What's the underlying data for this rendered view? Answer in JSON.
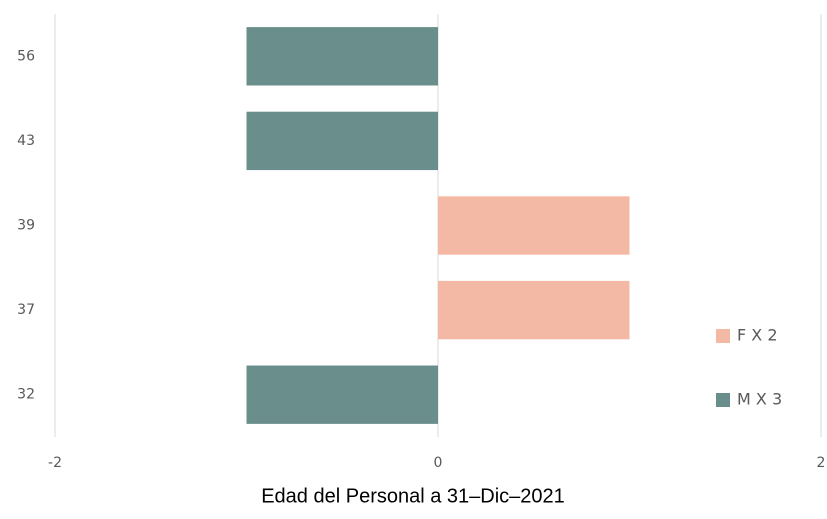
{
  "chart_data": {
    "type": "hbar",
    "title": "Edad del Personal a 31–Dic–2021",
    "categories": [
      "32",
      "37",
      "39",
      "43",
      "56"
    ],
    "series": [
      {
        "name": "F X 2",
        "color": "#f4b9a5",
        "values": [
          null,
          1,
          1,
          null,
          null
        ]
      },
      {
        "name": "M X 3",
        "color": "#6a8e8c",
        "values": [
          -1,
          null,
          null,
          -1,
          -1
        ]
      }
    ],
    "xlim": [
      -2,
      2
    ],
    "xticks": [
      -2,
      0,
      2
    ],
    "grid": true,
    "legend": "right"
  }
}
